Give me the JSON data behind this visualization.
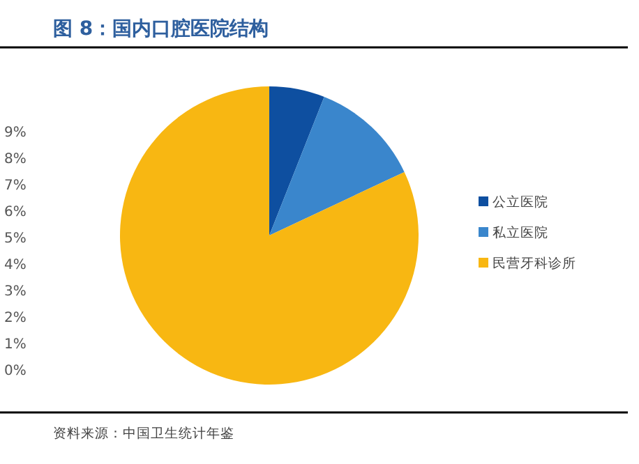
{
  "chart_data": {
    "type": "pie",
    "title": "图 8：国内口腔医院结构",
    "categories": [
      "公立医院",
      "私立医院",
      "民营牙科诊所"
    ],
    "values": [
      6,
      12,
      82
    ],
    "colors": [
      "#0e4fa0",
      "#3a86cc",
      "#f8b712"
    ],
    "legend": "right",
    "annotations": [
      "9%",
      "8%",
      "7%",
      "6%",
      "5%",
      "4%",
      "3%",
      "2%",
      "1%",
      "0%",
      "资料来源：中国卫生统计年鉴"
    ]
  }
}
